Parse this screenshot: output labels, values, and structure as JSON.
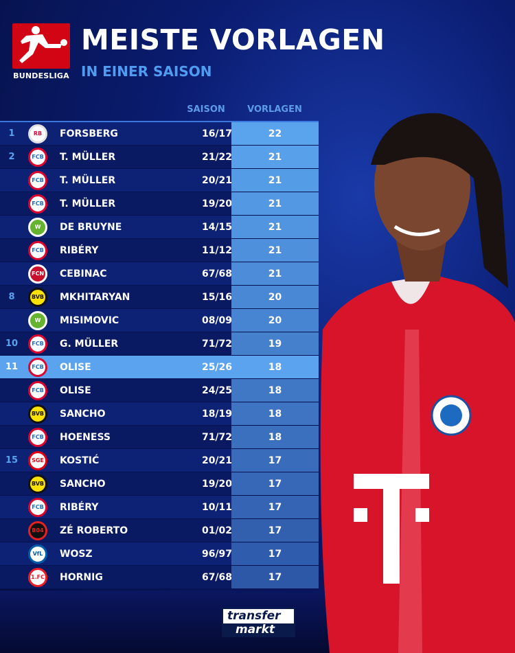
{
  "header": {
    "logo_text": "BUNDESLIGA",
    "title": "MEISTE VORLAGEN",
    "subtitle": "IN EINER SAISON"
  },
  "columns": {
    "season": "SAISON",
    "assists": "VORLAGEN"
  },
  "rows": [
    {
      "rank": "1",
      "club": "rb-leipzig",
      "name": "FORSBERG",
      "season": "16/17",
      "assists": "22"
    },
    {
      "rank": "2",
      "club": "bayern",
      "name": "T. MÜLLER",
      "season": "21/22",
      "assists": "21"
    },
    {
      "rank": "",
      "club": "bayern",
      "name": "T. MÜLLER",
      "season": "20/21",
      "assists": "21"
    },
    {
      "rank": "",
      "club": "bayern",
      "name": "T. MÜLLER",
      "season": "19/20",
      "assists": "21"
    },
    {
      "rank": "",
      "club": "wolfsburg",
      "name": "DE BRUYNE",
      "season": "14/15",
      "assists": "21"
    },
    {
      "rank": "",
      "club": "bayern",
      "name": "RIBÉRY",
      "season": "11/12",
      "assists": "21"
    },
    {
      "rank": "",
      "club": "nuernberg",
      "name": "CEBINAC",
      "season": "67/68",
      "assists": "21"
    },
    {
      "rank": "8",
      "club": "dortmund",
      "name": "MKHITARYAN",
      "season": "15/16",
      "assists": "20"
    },
    {
      "rank": "",
      "club": "wolfsburg",
      "name": "MISIMOVIC",
      "season": "08/09",
      "assists": "20"
    },
    {
      "rank": "10",
      "club": "bayern",
      "name": "G. MÜLLER",
      "season": "71/72",
      "assists": "19"
    },
    {
      "rank": "11",
      "club": "bayern",
      "name": "OLISE",
      "season": "25/26",
      "assists": "18",
      "highlight": true
    },
    {
      "rank": "",
      "club": "bayern",
      "name": "OLISE",
      "season": "24/25",
      "assists": "18"
    },
    {
      "rank": "",
      "club": "dortmund",
      "name": "SANCHO",
      "season": "18/19",
      "assists": "18"
    },
    {
      "rank": "",
      "club": "bayern",
      "name": "HOENESS",
      "season": "71/72",
      "assists": "18"
    },
    {
      "rank": "15",
      "club": "frankfurt",
      "name": "KOSTIĆ",
      "season": "20/21",
      "assists": "17"
    },
    {
      "rank": "",
      "club": "dortmund",
      "name": "SANCHO",
      "season": "19/20",
      "assists": "17"
    },
    {
      "rank": "",
      "club": "bayern",
      "name": "RIBÉRY",
      "season": "10/11",
      "assists": "17"
    },
    {
      "rank": "",
      "club": "leverkusen",
      "name": "ZÉ ROBERTO",
      "season": "01/02",
      "assists": "17"
    },
    {
      "rank": "",
      "club": "bochum",
      "name": "WOSZ",
      "season": "96/97",
      "assists": "17"
    },
    {
      "rank": "",
      "club": "koeln",
      "name": "HORNIG",
      "season": "67/68",
      "assists": "17"
    }
  ],
  "footer": {
    "brand_line1": "transfer",
    "brand_line2": "markt"
  },
  "colors": {
    "accent": "#4f9cf0",
    "highlight": "#5ba3ef",
    "bundesliga_red": "#d20515",
    "jersey_red": "#d8142a"
  }
}
